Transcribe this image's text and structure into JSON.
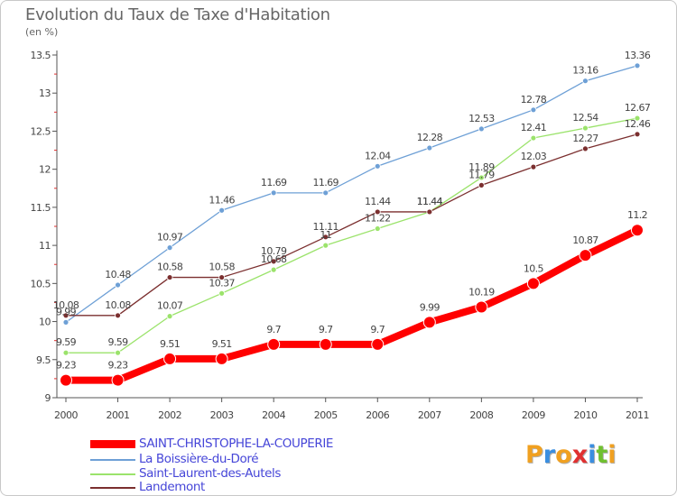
{
  "chart_data": {
    "type": "line",
    "title": "Evolution du Taux de Taxe d'Habitation",
    "subtitle": "(en %)",
    "x": [
      "2000",
      "2001",
      "2002",
      "2003",
      "2004",
      "2005",
      "2006",
      "2007",
      "2008",
      "2009",
      "2010",
      "2011"
    ],
    "ylim": [
      9,
      13.5
    ],
    "yticks": [
      "9",
      "9.5",
      "10",
      "10.5",
      "11",
      "11.5",
      "12",
      "12.5",
      "13",
      "13.5"
    ],
    "grid": false,
    "legend_position": "bottom-left",
    "series": [
      {
        "name": "SAINT-CHRISTOPHE-LA-COUPERIE",
        "color": "#ff0000",
        "values": [
          9.23,
          9.23,
          9.51,
          9.51,
          9.7,
          9.7,
          9.7,
          9.99,
          10.19,
          10.5,
          10.87,
          11.2
        ],
        "labels": [
          "9.23",
          "9.23",
          "9.51",
          "9.51",
          "9.7",
          "9.7",
          "9.7",
          "9.99",
          "10.19",
          "10.5",
          "10.87",
          "11.2"
        ]
      },
      {
        "name": "La Boissière-du-Doré",
        "color": "#6ea0d6",
        "values": [
          9.99,
          10.48,
          10.97,
          11.46,
          11.69,
          11.69,
          12.04,
          12.28,
          12.53,
          12.78,
          13.16,
          13.36
        ],
        "labels": [
          "9.99",
          "10.48",
          "10.97",
          "11.46",
          "11.69",
          "11.69",
          "12.04",
          "12.28",
          "12.53",
          "12.78",
          "13.16",
          "13.36"
        ]
      },
      {
        "name": "Saint-Laurent-des-Autels",
        "color": "#9be36b",
        "values": [
          9.59,
          9.59,
          10.07,
          10.37,
          10.68,
          11,
          11.22,
          11.44,
          11.89,
          12.41,
          12.54,
          12.67
        ],
        "labels": [
          "9.59",
          "9.59",
          "10.07",
          "10.37",
          "10.68",
          "11",
          "11.22",
          "11.44",
          "11.89",
          "12.41",
          "12.54",
          "12.67"
        ]
      },
      {
        "name": "Landemont",
        "color": "#7b2f2f",
        "values": [
          10.08,
          10.08,
          10.58,
          10.58,
          10.79,
          11.11,
          11.44,
          11.44,
          11.79,
          12.03,
          12.27,
          12.46
        ],
        "labels": [
          "10.08",
          "10.08",
          "10.58",
          "10.58",
          "10.79",
          "11.11",
          "11.44",
          "11.44",
          "11.79",
          "12.03",
          "12.27",
          "12.46"
        ]
      }
    ]
  },
  "logo": {
    "letters": [
      "P",
      "r",
      "o",
      "x",
      "i",
      "t",
      "i"
    ],
    "colors": [
      "#f0a020",
      "#3a8ee0",
      "#f0a020",
      "#e03030",
      "#3a8ee0",
      "#70c030",
      "#f0a020"
    ]
  }
}
